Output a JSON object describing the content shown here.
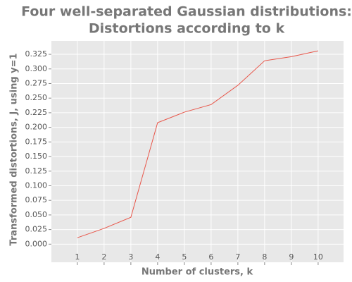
{
  "chart_data": {
    "type": "line",
    "title": [
      "Four well-separated Gaussian distributions:",
      "Distortions according to k"
    ],
    "x_label": "Number of clusters, k",
    "y_label": "Transformed distortions, J, using y=1",
    "x": [
      1,
      2,
      3,
      4,
      5,
      6,
      7,
      8,
      9,
      10
    ],
    "series": [
      {
        "color": "#e8564a",
        "values": [
          0.011,
          0.027,
          0.046,
          0.208,
          0.226,
          0.239,
          0.272,
          0.314,
          0.321,
          0.331
        ]
      }
    ],
    "xlim": [
      0.03,
      10.95
    ],
    "xticks": [
      1,
      2,
      3,
      4,
      5,
      6,
      7,
      8,
      9,
      10
    ],
    "ylim": [
      -0.031,
      0.348
    ],
    "yticks": [
      {
        "value": 0,
        "label": "0.000"
      },
      0.025,
      {
        "value": 0.05,
        "label": "0.050"
      },
      0.075,
      {
        "value": 0.1,
        "label": "0.100"
      },
      0.125,
      {
        "value": 0.15,
        "label": "0.150"
      },
      0.175,
      {
        "value": 0.2,
        "label": "0.200"
      },
      0.225,
      {
        "value": 0.25,
        "label": "0.250"
      },
      0.275,
      {
        "value": 0.3,
        "label": "0.300"
      },
      0.325
    ],
    "grid": true
  }
}
